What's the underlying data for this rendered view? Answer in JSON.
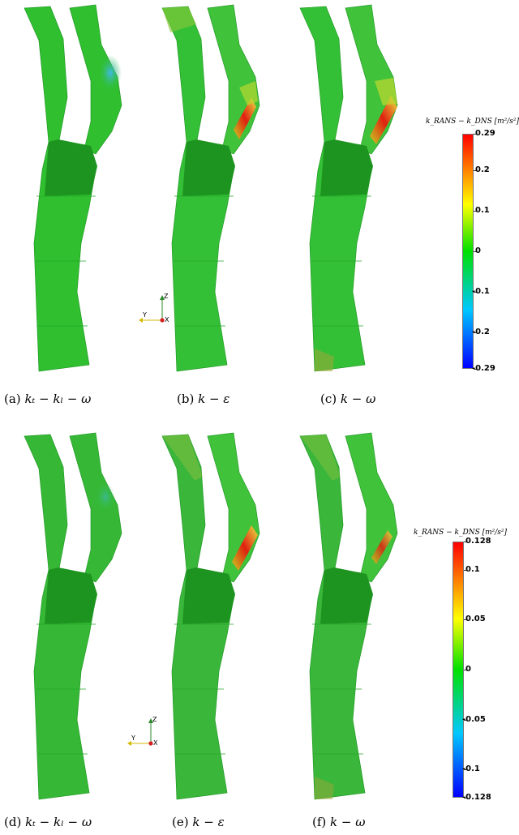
{
  "captions": {
    "a": {
      "label": "(a)",
      "text": "kₜ − kₗ − ω"
    },
    "b": {
      "label": "(b)",
      "text": "k − ε"
    },
    "c": {
      "label": "(c)",
      "text": "k − ω"
    },
    "d": {
      "label": "(d)",
      "text": "kₜ − kₗ − ω"
    },
    "e": {
      "label": "(e)",
      "text": "k − ε"
    },
    "f": {
      "label": "(f)",
      "text": "k − ω"
    }
  },
  "colorbar_top": {
    "title": "k_RANS − k_DNS [m²/s²]",
    "ticks": [
      "0.29",
      "0.2",
      "0.1",
      "0",
      "-0.1",
      "-0.2",
      "-0.29"
    ],
    "tick_values": [
      0.29,
      0.2,
      0.1,
      0,
      -0.1,
      -0.2,
      -0.29
    ],
    "range": [
      -0.29,
      0.29
    ]
  },
  "colorbar_bottom": {
    "title": "k_RANS − k_DNS [m²/s²]",
    "ticks": [
      "0.128",
      "0.1",
      "0.05",
      "0",
      "-0.05",
      "-0.1",
      "-0.128"
    ],
    "tick_values": [
      0.128,
      0.1,
      0.05,
      0,
      -0.05,
      -0.1,
      -0.128
    ],
    "range": [
      -0.128,
      0.128
    ]
  },
  "axes_labels": {
    "z": "Z",
    "y": "Y",
    "x": "X"
  },
  "colors": {
    "base_green": "#2fbf2f",
    "dark_green": "#1f9a22",
    "hot": "#d11",
    "warm": "#f0e040",
    "cool": "#4ab8e0"
  }
}
